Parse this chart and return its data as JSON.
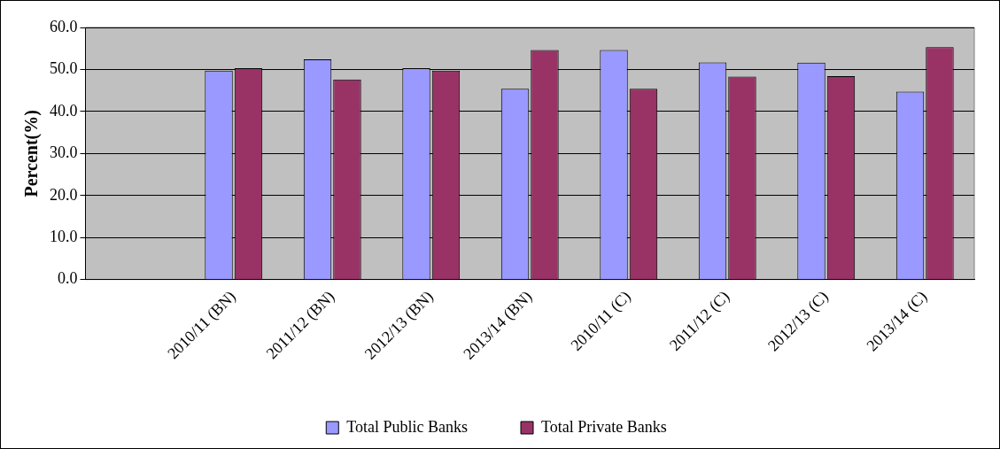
{
  "chart_data": {
    "type": "bar",
    "ylabel": "Percent(%)",
    "categories": [
      null,
      "2010/11 (BN)",
      "2011/12 (BN)",
      "2012/13 (BN)",
      "2013/14 (BN)",
      "2010/11 (C)",
      "2011/12 (C)",
      "2012/13 (C)",
      "2013/14 (C)"
    ],
    "series": [
      {
        "name": "Total Public Banks",
        "color": "#9999ff",
        "values": [
          null,
          49.7,
          52.4,
          50.3,
          45.4,
          54.6,
          51.7,
          51.6,
          44.7
        ]
      },
      {
        "name": "Total Private Banks",
        "color": "#993366",
        "values": [
          null,
          50.3,
          47.6,
          49.7,
          54.6,
          45.4,
          48.3,
          48.4,
          55.3
        ]
      }
    ],
    "ylim": [
      0,
      60
    ],
    "yticks": [
      {
        "value": 0,
        "label": "0.0"
      },
      {
        "value": 10,
        "label": "10.0"
      },
      {
        "value": 20,
        "label": "20.0"
      },
      {
        "value": 30,
        "label": "30.0"
      },
      {
        "value": 40,
        "label": "40.0"
      },
      {
        "value": 50,
        "label": "50.0"
      },
      {
        "value": 60,
        "label": "60.0"
      }
    ],
    "grid": "y",
    "legend": "bottom"
  }
}
